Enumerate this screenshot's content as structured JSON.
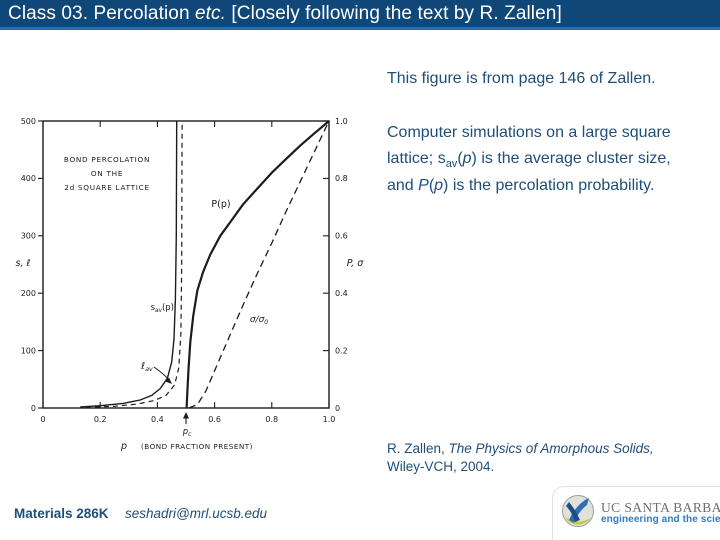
{
  "slide": {
    "title": {
      "prefix": "Class 03. Percolation ",
      "italic": "etc.",
      "suffix": " [Closely following the text by R. Zallen]"
    },
    "body": {
      "para1": "This figure is from page 146 of Zallen.",
      "para2": {
        "s1": "Computer simulations on a large square lattice; s",
        "sub1": "av",
        "s2": "(",
        "it1": "p",
        "s3": ") is the average cluster size, and ",
        "it2": "P",
        "s4": "(",
        "it3": "p",
        "s5": ") is the percolation probability."
      }
    },
    "citation": {
      "c1": "R. Zallen, ",
      "c2": "The Physics of Amorphous Solids,",
      "c3": " Wiley-VCH, 2004."
    },
    "footer": {
      "course": "Materials 286K",
      "email": "seshadri@mrl.ucsb.edu"
    },
    "logo": {
      "line1": "UC SANTA BARBARA",
      "line2": "engineering and the sciences"
    }
  },
  "colors": {
    "title_bar": "#0f4779",
    "title_bar_accent": "#2d6ca6",
    "body_text": "#1f4e79",
    "chart_ink": "#1c1c1c",
    "logo_gray": "#6e6f72",
    "logo_blue": "#2f7cc0",
    "logo_globe_yellow": "#c6c93f",
    "logo_globe_blue": "#2f6db5"
  },
  "chart_data": {
    "type": "line",
    "title_lines": [
      "BOND PERCOLATION",
      "ON THE",
      "2d SQUARE LATTICE"
    ],
    "xlabel": "p",
    "xlabel_note": "(BOND FRACTION PRESENT)",
    "ylabel_left": "s, ℓ",
    "ylabel_right": "P, σ",
    "xlim": [
      0,
      1.0
    ],
    "ylim_left": [
      0,
      500
    ],
    "ylim_right": [
      0,
      1.0
    ],
    "x_ticks": [
      0,
      0.2,
      0.4,
      0.6,
      0.8,
      1.0
    ],
    "left_ticks": [
      0,
      100,
      200,
      300,
      400,
      500
    ],
    "right_ticks": [
      0,
      0.2,
      0.4,
      0.6,
      0.8,
      1.0
    ],
    "grid": false,
    "critical_point": {
      "p": 0.5,
      "label": "p{c}"
    },
    "annotations": {
      "sav": "s{av}(p)",
      "lav": "ℓ{av}",
      "P": "P(p)",
      "sigma": "σ/σ{0}"
    },
    "series": [
      {
        "name": "average cluster size s_av(p)",
        "axis": "left",
        "style": "solid",
        "points": [
          [
            0.13,
            2
          ],
          [
            0.2,
            4
          ],
          [
            0.28,
            8
          ],
          [
            0.34,
            14
          ],
          [
            0.38,
            22
          ],
          [
            0.41,
            34
          ],
          [
            0.435,
            52
          ],
          [
            0.45,
            80
          ],
          [
            0.458,
            120
          ],
          [
            0.463,
            190
          ],
          [
            0.466,
            300
          ],
          [
            0.4675,
            500
          ]
        ]
      },
      {
        "name": "average path length l_av(p)",
        "axis": "left",
        "style": "dashed",
        "points": [
          [
            0.15,
            1
          ],
          [
            0.25,
            3
          ],
          [
            0.33,
            7
          ],
          [
            0.39,
            13
          ],
          [
            0.43,
            22
          ],
          [
            0.46,
            40
          ],
          [
            0.475,
            70
          ],
          [
            0.482,
            130
          ],
          [
            0.485,
            250
          ],
          [
            0.4865,
            500
          ]
        ]
      },
      {
        "name": "percolation probability P(p)",
        "axis": "right",
        "style": "solid",
        "points": [
          [
            0.502,
            0
          ],
          [
            0.505,
            0.06
          ],
          [
            0.509,
            0.14
          ],
          [
            0.515,
            0.23
          ],
          [
            0.525,
            0.32
          ],
          [
            0.54,
            0.41
          ],
          [
            0.56,
            0.475
          ],
          [
            0.585,
            0.535
          ],
          [
            0.62,
            0.6
          ],
          [
            0.66,
            0.655
          ],
          [
            0.7,
            0.71
          ],
          [
            0.75,
            0.765
          ],
          [
            0.8,
            0.82
          ],
          [
            0.85,
            0.868
          ],
          [
            0.9,
            0.915
          ],
          [
            0.95,
            0.958
          ],
          [
            1.0,
            1.0
          ]
        ]
      },
      {
        "name": "normalized conductivity sigma/sigma_0",
        "axis": "right",
        "style": "dashed",
        "points": [
          [
            0.51,
            0
          ],
          [
            0.54,
            0.012
          ],
          [
            0.57,
            0.06
          ],
          [
            0.6,
            0.13
          ],
          [
            0.65,
            0.245
          ],
          [
            0.7,
            0.36
          ],
          [
            0.75,
            0.47
          ],
          [
            0.8,
            0.575
          ],
          [
            0.85,
            0.685
          ],
          [
            0.9,
            0.79
          ],
          [
            0.95,
            0.895
          ],
          [
            1.0,
            1.0
          ]
        ]
      }
    ]
  }
}
